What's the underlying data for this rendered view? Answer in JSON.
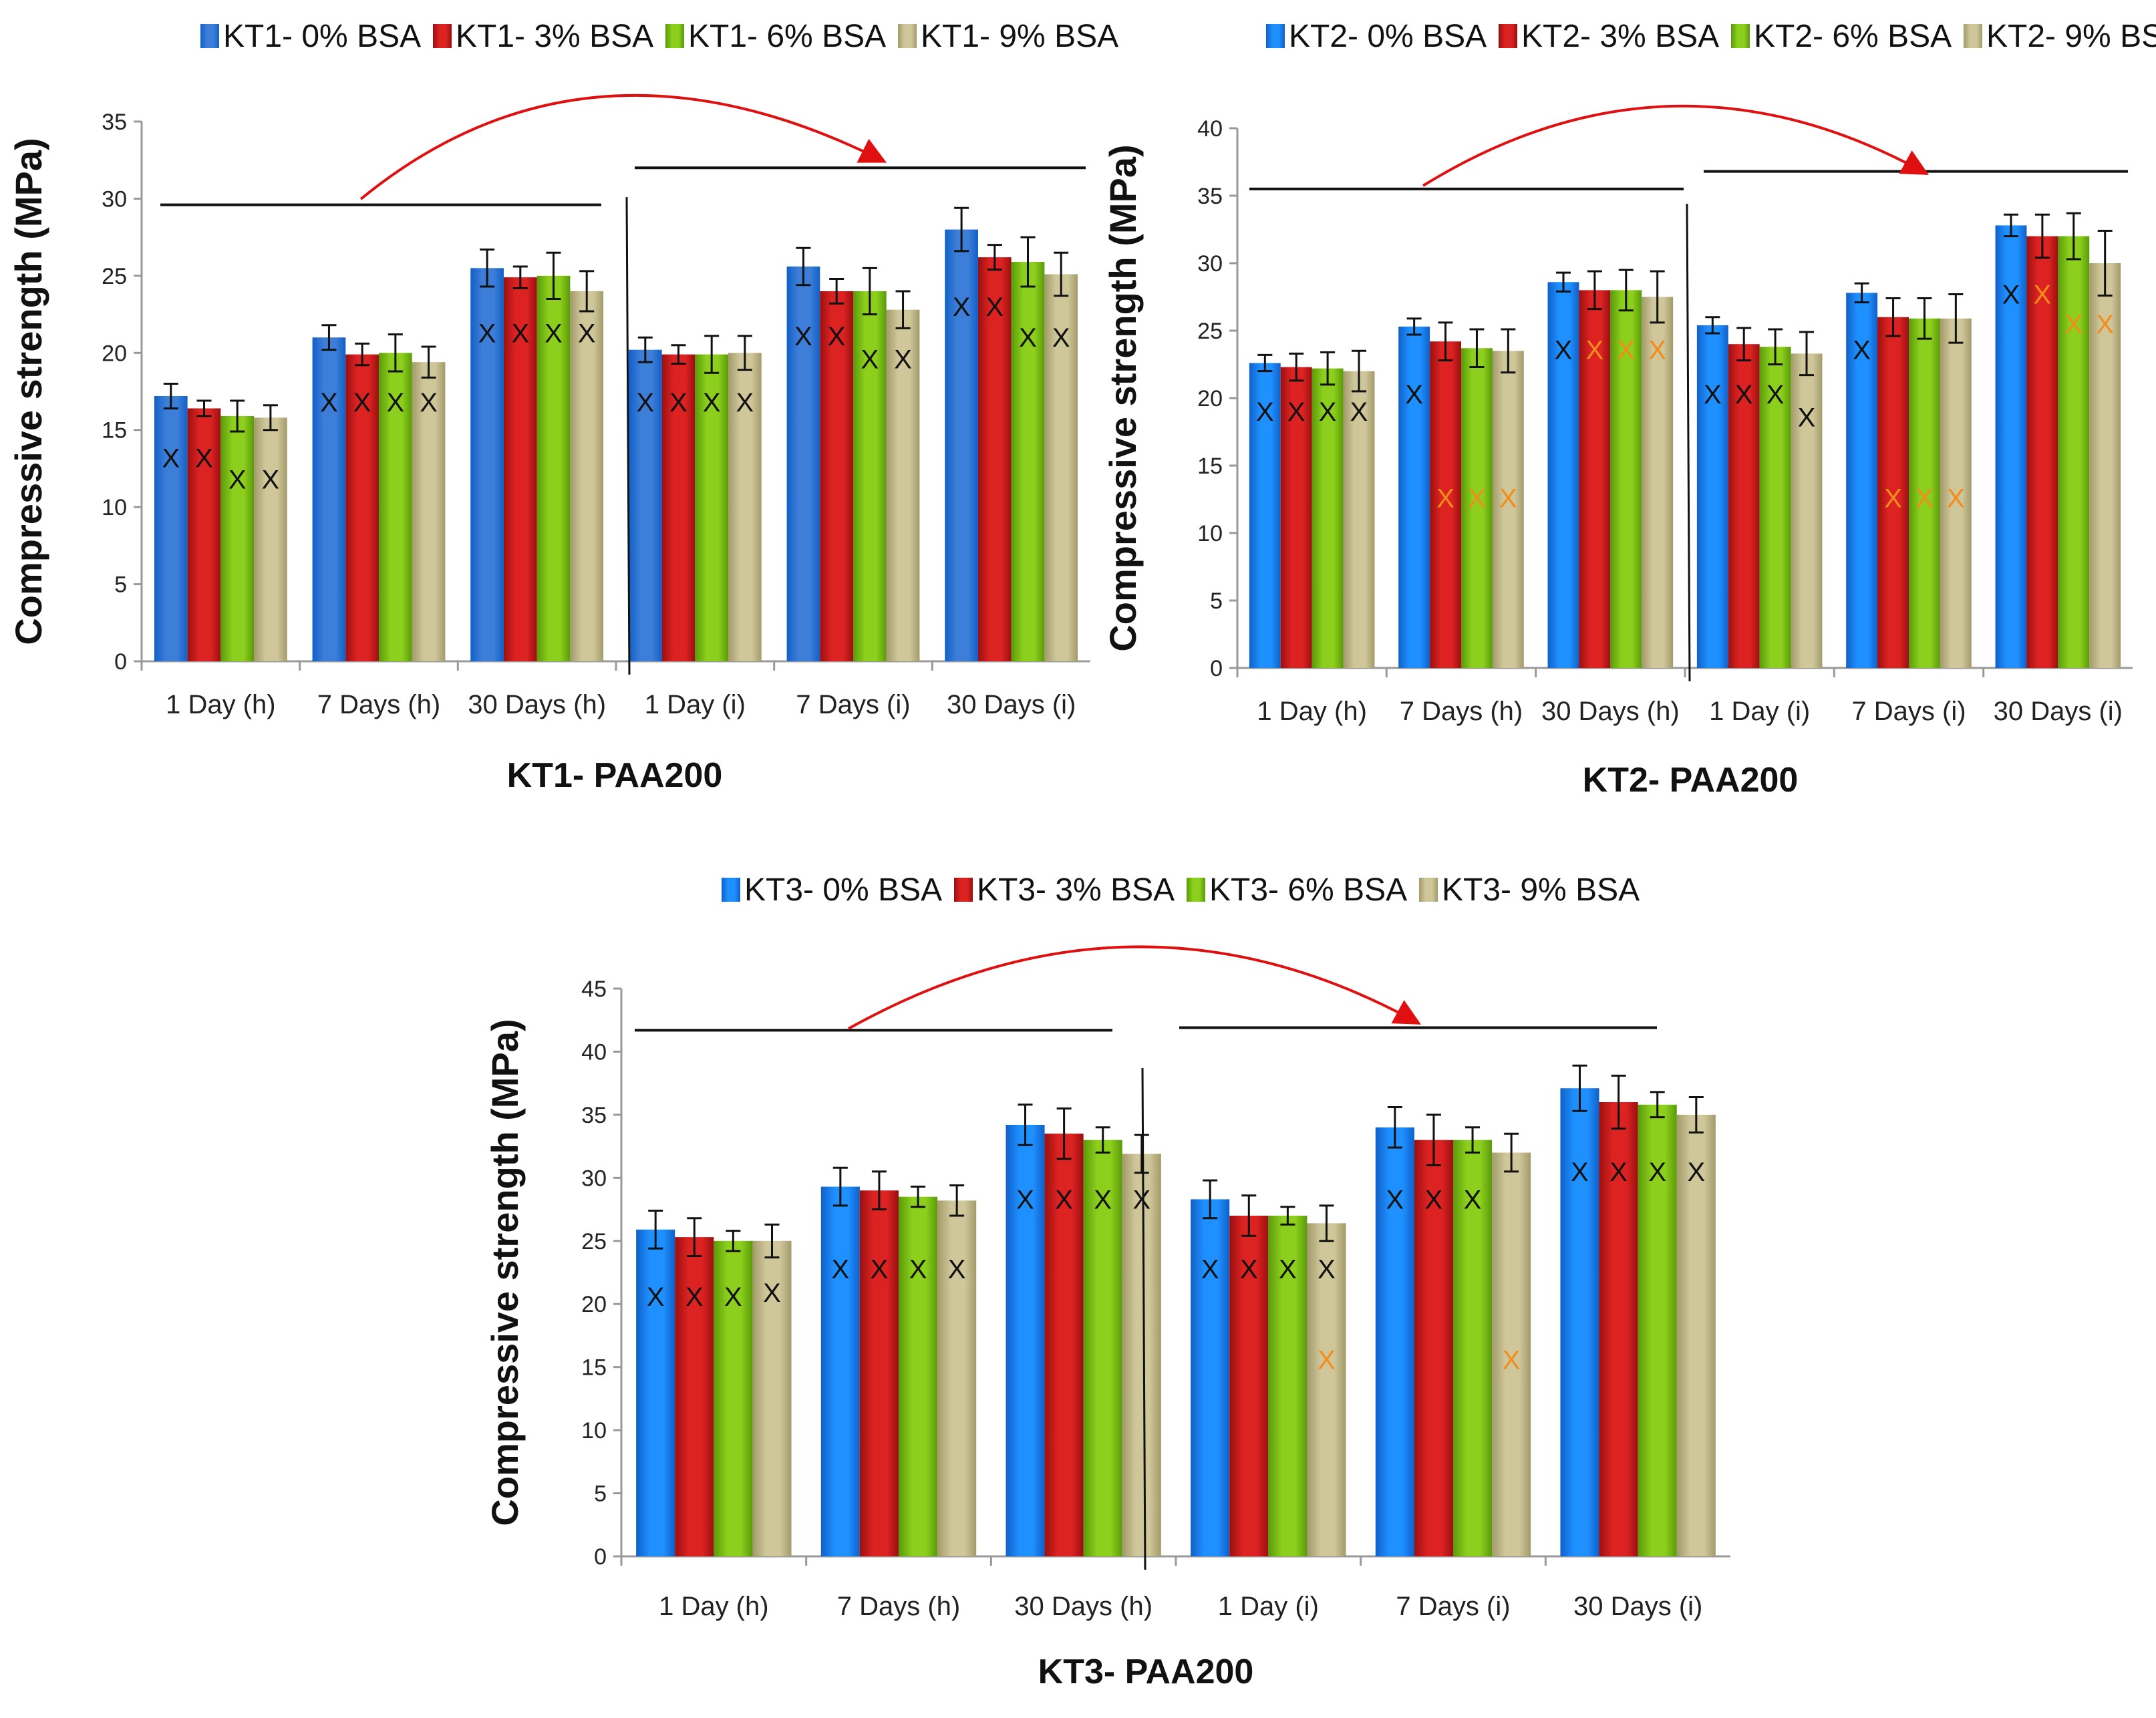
{
  "chart_data": [
    {
      "type": "bar",
      "title": "KT1- PAA200",
      "ylabel": "Compressive strength (MPa)",
      "xlabel": "KT1- PAA200",
      "ylim": [
        0,
        35
      ],
      "yticks": [
        0,
        5,
        10,
        15,
        20,
        25,
        30,
        35
      ],
      "categories": [
        "1 Day (h)",
        "7 Days (h)",
        "30 Days (h)",
        "1 Day (i)",
        "7 Days (i)",
        "30 Days (i)"
      ],
      "series": [
        {
          "name": "KT1- 0% BSA",
          "values": [
            17.2,
            21.0,
            25.5,
            20.2,
            25.6,
            28.0
          ],
          "errors": [
            0.8,
            0.8,
            1.2,
            0.8,
            1.2,
            1.4
          ]
        },
        {
          "name": "KT1- 3% BSA",
          "values": [
            16.4,
            19.9,
            24.9,
            19.9,
            24.0,
            26.2
          ],
          "errors": [
            0.5,
            0.7,
            0.7,
            0.6,
            0.8,
            0.8
          ]
        },
        {
          "name": "KT1- 6% BSA",
          "values": [
            15.9,
            20.0,
            25.0,
            19.9,
            24.0,
            25.9
          ],
          "errors": [
            1.0,
            1.2,
            1.5,
            1.2,
            1.5,
            1.6
          ]
        },
        {
          "name": "KT1- 9% BSA",
          "values": [
            15.8,
            19.4,
            24.0,
            20.0,
            22.8,
            25.1
          ],
          "errors": [
            0.8,
            1.0,
            1.3,
            1.1,
            1.2,
            1.4
          ]
        }
      ],
      "marks": [
        [
          "X",
          "X",
          "X",
          "X"
        ],
        [
          "X",
          "X",
          "X",
          "X"
        ],
        [
          "X",
          "X",
          "X",
          "X"
        ],
        [
          "X",
          "X",
          "X",
          "X"
        ],
        [
          "X",
          "X",
          "X",
          "X"
        ],
        [
          "X",
          "X",
          "X",
          "X"
        ]
      ],
      "markValues": [
        [
          13.2,
          13.2,
          11.8,
          11.8
        ],
        [
          16.8,
          16.8,
          16.8,
          16.8
        ],
        [
          21.3,
          21.3,
          21.3,
          21.3
        ],
        [
          16.8,
          16.8,
          16.8,
          16.8
        ],
        [
          21.1,
          21.1,
          19.6,
          19.6
        ],
        [
          23.0,
          23.0,
          21.0,
          21.0
        ]
      ],
      "orange": [],
      "annotation_lines": [
        29.6,
        32.0
      ]
    },
    {
      "type": "bar",
      "title": "KT2- PAA200",
      "ylabel": "Compressive strength (MPa)",
      "xlabel": "KT2- PAA200",
      "ylim": [
        0,
        40
      ],
      "yticks": [
        0,
        5,
        10,
        15,
        20,
        25,
        30,
        35,
        40
      ],
      "categories": [
        "1 Day (h)",
        "7 Days (h)",
        "30 Days (h)",
        "1 Day (i)",
        "7 Days (i)",
        "30 Days (i)"
      ],
      "series": [
        {
          "name": "KT2- 0% BSA",
          "values": [
            22.6,
            25.3,
            28.6,
            25.4,
            27.8,
            32.8
          ],
          "errors": [
            0.6,
            0.6,
            0.7,
            0.6,
            0.7,
            0.8
          ]
        },
        {
          "name": "KT2- 3% BSA",
          "values": [
            22.3,
            24.2,
            28.0,
            24.0,
            26.0,
            32.0
          ],
          "errors": [
            1.0,
            1.4,
            1.4,
            1.2,
            1.4,
            1.6
          ]
        },
        {
          "name": "KT2- 6% BSA",
          "values": [
            22.2,
            23.7,
            28.0,
            23.8,
            25.9,
            32.0
          ],
          "errors": [
            1.2,
            1.4,
            1.5,
            1.3,
            1.5,
            1.7
          ]
        },
        {
          "name": "KT2- 9% BSA",
          "values": [
            22.0,
            23.5,
            27.5,
            23.3,
            25.9,
            30.0
          ],
          "errors": [
            1.5,
            1.6,
            1.9,
            1.6,
            1.8,
            2.4
          ]
        }
      ],
      "marks": [
        [
          "X",
          "X",
          "X",
          "X"
        ],
        [
          "X",
          "X",
          "X",
          "X"
        ],
        [
          "X",
          "X",
          "X",
          "X"
        ],
        [
          "X",
          "X",
          "X",
          "X"
        ],
        [
          "X",
          "X",
          "X",
          "X"
        ],
        [
          "X",
          "X",
          "X",
          "X"
        ]
      ],
      "markValues": [
        [
          19.0,
          19.0,
          19.0,
          19.0
        ],
        [
          20.3,
          12.6,
          12.6,
          12.6
        ],
        [
          23.6,
          23.6,
          23.6,
          23.6
        ],
        [
          20.3,
          20.3,
          20.3,
          18.6
        ],
        [
          23.6,
          12.6,
          12.6,
          12.6
        ],
        [
          27.7,
          27.7,
          25.5,
          25.5
        ]
      ],
      "orange": [
        [
          1,
          1
        ],
        [
          1,
          2
        ],
        [
          1,
          3
        ],
        [
          2,
          1
        ],
        [
          2,
          2
        ],
        [
          2,
          3
        ],
        [
          4,
          1
        ],
        [
          4,
          2
        ],
        [
          4,
          3
        ],
        [
          5,
          1
        ],
        [
          5,
          2
        ],
        [
          5,
          3
        ]
      ],
      "orange_second": true,
      "annotation_lines": [
        35.5,
        36.8
      ]
    },
    {
      "type": "bar",
      "title": "KT3- PAA200",
      "ylabel": "Compressive strength (MPa)",
      "xlabel": "KT3- PAA200",
      "ylim": [
        0,
        45
      ],
      "yticks": [
        0,
        5,
        10,
        15,
        20,
        25,
        30,
        35,
        40,
        45
      ],
      "categories": [
        "1 Day (h)",
        "7 Days (h)",
        "30 Days (h)",
        "1 Day (i)",
        "7 Days (i)",
        "30 Days (i)"
      ],
      "series": [
        {
          "name": "KT3- 0% BSA",
          "values": [
            25.9,
            29.3,
            34.2,
            28.3,
            34.0,
            37.1
          ],
          "errors": [
            1.5,
            1.5,
            1.6,
            1.5,
            1.6,
            1.8
          ]
        },
        {
          "name": "KT3- 3% BSA",
          "values": [
            25.3,
            29.0,
            33.5,
            27.0,
            33.0,
            36.0
          ],
          "errors": [
            1.5,
            1.5,
            2.0,
            1.6,
            2.0,
            2.1
          ]
        },
        {
          "name": "KT3- 6% BSA",
          "values": [
            25.0,
            28.5,
            33.0,
            27.0,
            33.0,
            35.8
          ],
          "errors": [
            0.8,
            0.8,
            1.0,
            0.7,
            1.0,
            1.0
          ]
        },
        {
          "name": "KT3- 9% BSA",
          "values": [
            25.0,
            28.2,
            31.9,
            26.4,
            32.0,
            35.0
          ],
          "errors": [
            1.3,
            1.2,
            1.5,
            1.4,
            1.5,
            1.4
          ]
        }
      ],
      "marks": [
        [
          "X",
          "X",
          "X",
          "X"
        ],
        [
          "X",
          "X",
          "X",
          "X"
        ],
        [
          "X",
          "X",
          "X",
          "X"
        ],
        [
          "X",
          "X",
          "X",
          "X"
        ],
        [
          "X",
          "X",
          "X",
          "X"
        ],
        [
          "X",
          "X",
          "X",
          "X"
        ]
      ],
      "markValues": [
        [
          20.6,
          20.6,
          20.6,
          20.9
        ],
        [
          22.8,
          22.8,
          22.8,
          22.8
        ],
        [
          28.3,
          28.3,
          28.3,
          28.3
        ],
        [
          22.8,
          22.8,
          22.8,
          22.8
        ],
        [
          28.3,
          28.3,
          28.3,
          15.6
        ],
        [
          30.5,
          30.5,
          30.5,
          30.5
        ]
      ],
      "extraMarks": [
        {
          "cat": 3,
          "s": 3,
          "value": 15.6,
          "label": "X",
          "orange": true
        }
      ],
      "orange": [
        [
          4,
          3
        ]
      ],
      "annotation_lines": [
        41.7,
        41.9
      ]
    }
  ],
  "colors": {
    "series": [
      "#1e90ff",
      "#dd2222",
      "#8ccf1c",
      "#cfc79a"
    ],
    "seriesDark": [
      "#1060c8",
      "#9a1010",
      "#5a9a0a",
      "#a39a6a"
    ],
    "kt1series": [
      "#3d7ed8",
      "#dd2222",
      "#8ccf1c",
      "#cfc79a"
    ],
    "arrow": "#e01010",
    "orangeMark": "#f28c1c"
  }
}
